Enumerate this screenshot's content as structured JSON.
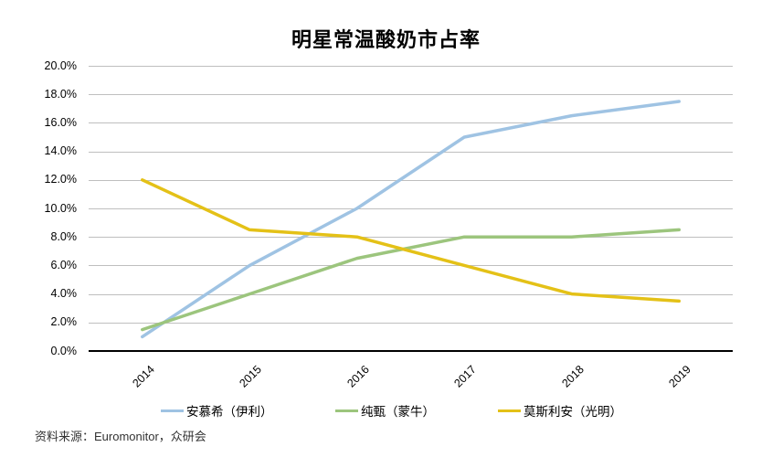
{
  "title": "明星常温酸奶市占率",
  "source_note": "资料来源：Euromonitor，众研会",
  "colors": {
    "gridline": "#BFBFBF",
    "axis": "#000000",
    "series_blue": "#9FC3E3",
    "series_green": "#9CC57D",
    "series_yellow": "#E4C117"
  },
  "chart_data": {
    "type": "line",
    "title": "明星常温酸奶市占率",
    "categories": [
      "2014",
      "2015",
      "2016",
      "2017",
      "2018",
      "2019"
    ],
    "series": [
      {
        "name": "安慕希（伊利）",
        "color": "#9FC3E3",
        "values": [
          1.0,
          6.0,
          10.0,
          15.0,
          16.5,
          17.5
        ]
      },
      {
        "name": "纯甄（蒙牛）",
        "color": "#9CC57D",
        "values": [
          1.5,
          4.0,
          6.5,
          8.0,
          8.0,
          8.5
        ]
      },
      {
        "name": "莫斯利安（光明）",
        "color": "#E4C117",
        "values": [
          12.0,
          8.5,
          8.0,
          6.0,
          4.0,
          3.5
        ]
      }
    ],
    "xlabel": "",
    "ylabel": "",
    "ylim": [
      0,
      20
    ],
    "ytick_step": 2,
    "ytick_labels": [
      "0.0%",
      "2.0%",
      "4.0%",
      "6.0%",
      "8.0%",
      "10.0%",
      "12.0%",
      "14.0%",
      "16.0%",
      "18.0%",
      "20.0%"
    ],
    "grid": true,
    "legend_position": "bottom",
    "source": "资料来源：Euromonitor，众研会"
  }
}
